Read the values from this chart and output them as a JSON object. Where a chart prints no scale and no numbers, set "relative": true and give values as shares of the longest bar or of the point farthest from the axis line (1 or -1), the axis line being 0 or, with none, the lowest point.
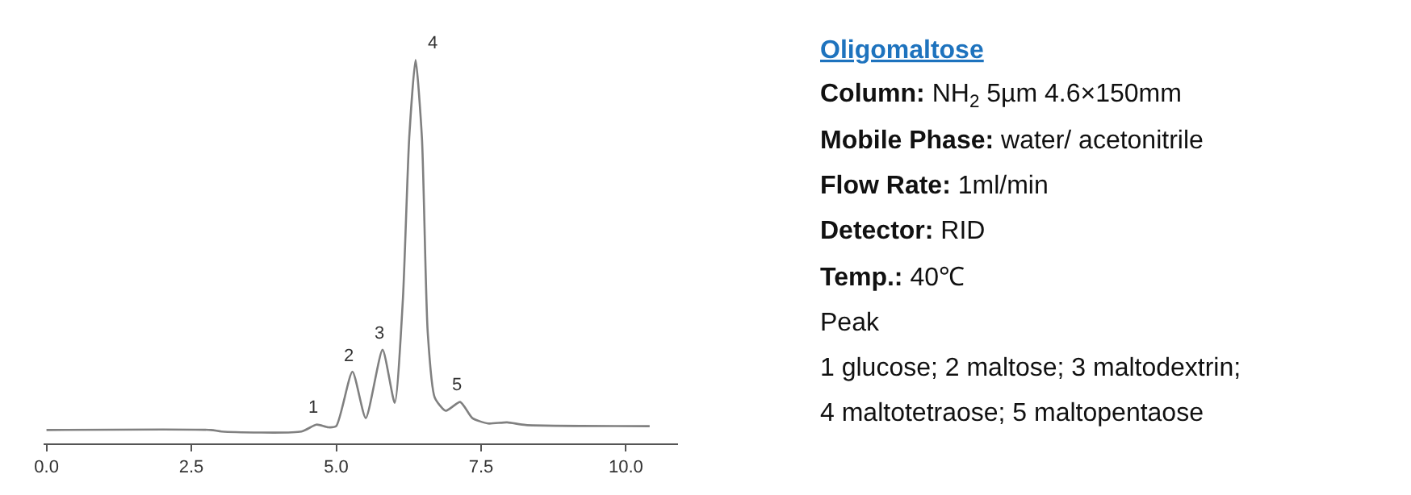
{
  "chart_data": {
    "type": "line",
    "relative": true,
    "title": "Oligomaltose",
    "color": "#808080",
    "x": [
      0,
      2.84,
      3.02,
      4.4,
      4.66,
      4.86,
      5.0,
      5.28,
      5.51,
      5.8,
      6.01,
      6.15,
      6.26,
      6.37,
      6.48,
      6.58,
      6.7,
      6.89,
      7.14,
      7.35,
      7.62,
      7.95,
      8.27,
      10.41
    ],
    "values": [
      0.035,
      0.035,
      0.031,
      0.031,
      0.049,
      0.042,
      0.045,
      0.187,
      0.066,
      0.244,
      0.106,
      0.373,
      0.796,
      1.0,
      0.796,
      0.289,
      0.12,
      0.085,
      0.108,
      0.066,
      0.052,
      0.055,
      0.048,
      0.045
    ],
    "xlim": [
      -0.05,
      10.9
    ],
    "xticks": [
      {
        "value": 0,
        "label": "0.0"
      },
      {
        "value": 2.5,
        "label": "2.5"
      },
      {
        "value": 5,
        "label": "5.0"
      },
      {
        "value": 7.5,
        "label": "7.5"
      },
      {
        "value": 10,
        "label": "10.0"
      }
    ],
    "marker": "none",
    "line_style": "solid",
    "annotations": [
      {
        "text": "1",
        "x": 4.66,
        "y": 0.049
      },
      {
        "text": "2",
        "x": 5.28,
        "y": 0.187
      },
      {
        "text": "3",
        "x": 5.8,
        "y": 0.244
      },
      {
        "text": "4",
        "x": 6.37,
        "y": 1.0
      },
      {
        "text": "5",
        "x": 7.14,
        "y": 0.108
      },
      "Column: NH$_{2}$ 5µm 4.6×150mm",
      "Mobile Phase: water/ acetonitrile",
      "Flow Rate: 1ml/min",
      "Detector: RID",
      "Temp.: 40℃",
      "Peak",
      "1 glucose; 2 maltose; 3 maltodextrin;",
      "4 maltotetraose; 5 maltopentaose"
    ]
  }
}
